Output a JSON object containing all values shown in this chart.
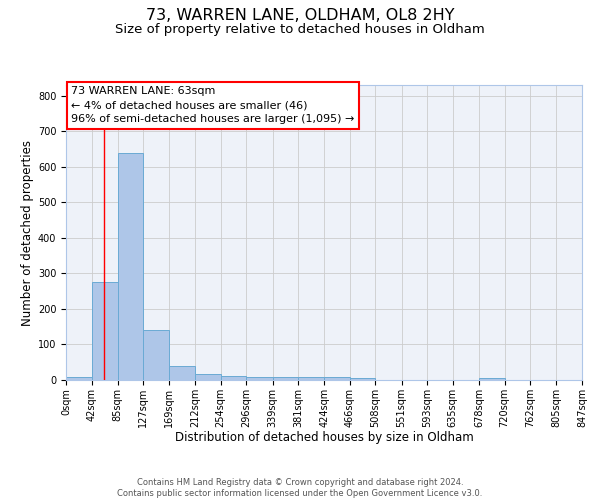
{
  "title": "73, WARREN LANE, OLDHAM, OL8 2HY",
  "subtitle": "Size of property relative to detached houses in Oldham",
  "xlabel": "Distribution of detached houses by size in Oldham",
  "ylabel": "Number of detached properties",
  "bin_edges": [
    0,
    42,
    85,
    127,
    169,
    212,
    254,
    296,
    339,
    381,
    424,
    466,
    508,
    551,
    593,
    635,
    678,
    720,
    762,
    805,
    847
  ],
  "bar_heights": [
    8,
    275,
    640,
    140,
    38,
    18,
    12,
    8,
    8,
    8,
    8,
    7,
    0,
    0,
    0,
    0,
    7,
    0,
    0,
    0
  ],
  "bar_color": "#aec6e8",
  "bar_edge_color": "#6aaad4",
  "bar_edge_width": 0.7,
  "grid_color": "#cccccc",
  "background_color": "#eef2f9",
  "red_line_x": 63,
  "annotation_line1": "73 WARREN LANE: 63sqm",
  "annotation_line2": "← 4% of detached houses are smaller (46)",
  "annotation_line3": "96% of semi-detached houses are larger (1,095) →",
  "ylim": [
    0,
    830
  ],
  "yticks": [
    0,
    100,
    200,
    300,
    400,
    500,
    600,
    700,
    800
  ],
  "footer_text": "Contains HM Land Registry data © Crown copyright and database right 2024.\nContains public sector information licensed under the Open Government Licence v3.0.",
  "title_fontsize": 11.5,
  "subtitle_fontsize": 9.5,
  "axis_label_fontsize": 8.5,
  "tick_fontsize": 7,
  "annotation_fontsize": 8,
  "footer_fontsize": 6
}
